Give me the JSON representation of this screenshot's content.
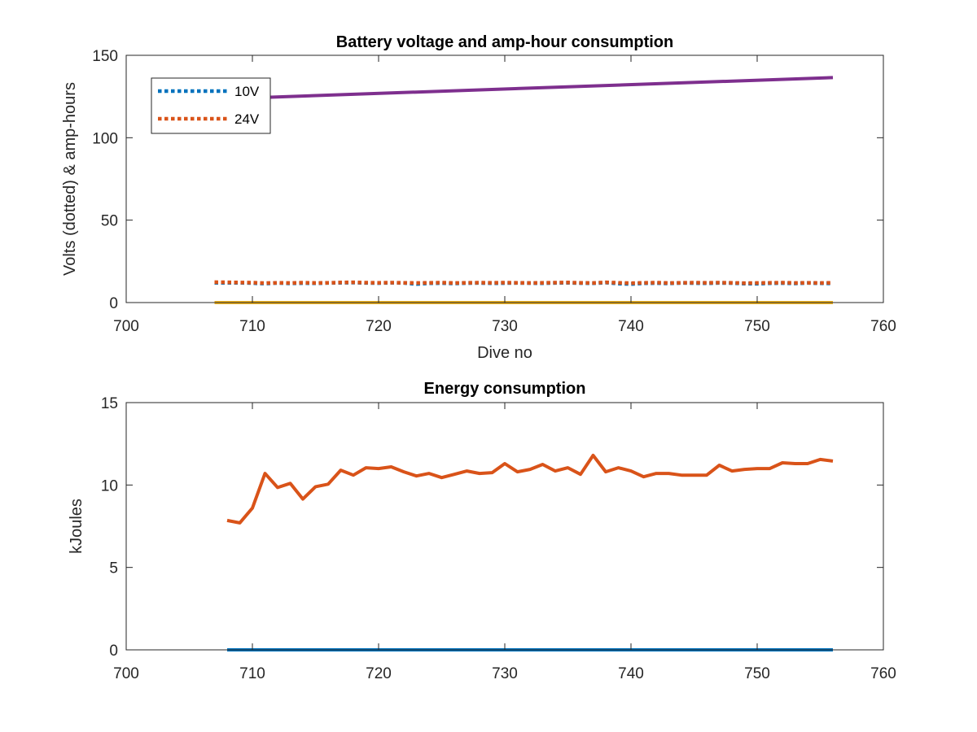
{
  "chart_data": [
    {
      "type": "line",
      "title": "Battery voltage and amp-hour consumption",
      "xlabel": "Dive no",
      "ylabel": "Volts (dotted) & amp-hours",
      "xlim": [
        700,
        760
      ],
      "ylim": [
        0,
        150
      ],
      "xticks": [
        700,
        710,
        720,
        730,
        740,
        750,
        760
      ],
      "yticks": [
        0,
        50,
        100,
        150
      ],
      "legend_position": "top-left",
      "grid": false,
      "series": [
        {
          "name": "10V",
          "style": "dotted",
          "color": "#0072BD",
          "x": [
            707,
            708,
            709,
            710,
            711,
            712,
            713,
            714,
            715,
            716,
            717,
            718,
            719,
            720,
            721,
            722,
            723,
            724,
            725,
            726,
            727,
            728,
            729,
            730,
            731,
            732,
            733,
            734,
            735,
            736,
            737,
            738,
            739,
            740,
            741,
            742,
            743,
            744,
            745,
            746,
            747,
            748,
            749,
            750,
            751,
            752,
            753,
            754,
            755,
            756
          ],
          "y": [
            12,
            12,
            12,
            11.8,
            11.5,
            11.9,
            11.6,
            11.8,
            11.7,
            11.9,
            12,
            12.1,
            11.9,
            11.8,
            12,
            11.9,
            11.2,
            11.7,
            11.8,
            11.6,
            11.8,
            11.9,
            11.7,
            11.8,
            11.9,
            11.8,
            11.7,
            11.9,
            12,
            11.8,
            11.7,
            12.1,
            11.5,
            11.2,
            11.7,
            11.8,
            11.6,
            11.9,
            11.8,
            11.7,
            11.9,
            11.8,
            11.5,
            11.4,
            11.7,
            11.8,
            11.6,
            11.9,
            11.7,
            11.6
          ]
        },
        {
          "name": "24V",
          "style": "dotted",
          "color": "#D95319",
          "x": [
            707,
            708,
            709,
            710,
            711,
            712,
            713,
            714,
            715,
            716,
            717,
            718,
            719,
            720,
            721,
            722,
            723,
            724,
            725,
            726,
            727,
            728,
            729,
            730,
            731,
            732,
            733,
            734,
            735,
            736,
            737,
            738,
            739,
            740,
            741,
            742,
            743,
            744,
            745,
            746,
            747,
            748,
            749,
            750,
            751,
            752,
            753,
            754,
            755,
            756
          ],
          "y": [
            12.4,
            12.3,
            12.2,
            12.1,
            11.8,
            12,
            11.9,
            12.1,
            11.9,
            12,
            12.2,
            12.3,
            12.1,
            12,
            12.1,
            12,
            11.9,
            12,
            12.1,
            11.9,
            12,
            12.1,
            12,
            12.1,
            12,
            11.9,
            12,
            12.1,
            12.2,
            12,
            11.9,
            12.3,
            12,
            11.8,
            12,
            12.1,
            11.9,
            12,
            12.1,
            12,
            12.1,
            12,
            11.8,
            11.9,
            12,
            12.1,
            11.9,
            12,
            11.9,
            12
          ]
        },
        {
          "color": "#EDB120",
          "style": "solid",
          "x": [
            707,
            756
          ],
          "y": [
            0,
            0
          ]
        },
        {
          "color": "#7E2F8E",
          "style": "solid",
          "x": [
            711,
            756
          ],
          "y": [
            124.5,
            136.5
          ]
        }
      ],
      "legend": {
        "items": [
          "10V",
          "24V"
        ]
      }
    },
    {
      "type": "line",
      "title": "Energy consumption",
      "xlabel": "",
      "ylabel": "kJoules",
      "xlim": [
        700,
        760
      ],
      "ylim": [
        0,
        15
      ],
      "xticks": [
        700,
        710,
        720,
        730,
        740,
        750,
        760
      ],
      "yticks": [
        0,
        5,
        10,
        15
      ],
      "grid": false,
      "series": [
        {
          "color": "#0072BD",
          "style": "solid",
          "x": [
            708,
            756
          ],
          "y": [
            0,
            0
          ]
        },
        {
          "color": "#D95319",
          "style": "solid",
          "x": [
            708,
            709,
            710,
            711,
            712,
            713,
            714,
            715,
            716,
            717,
            718,
            719,
            720,
            721,
            722,
            723,
            724,
            725,
            726,
            727,
            728,
            729,
            730,
            731,
            732,
            733,
            734,
            735,
            736,
            737,
            738,
            739,
            740,
            741,
            742,
            743,
            744,
            745,
            746,
            747,
            748,
            749,
            750,
            751,
            752,
            753,
            754,
            755,
            756
          ],
          "y": [
            7.85,
            7.7,
            8.6,
            10.7,
            9.85,
            10.1,
            9.15,
            9.9,
            10.05,
            10.9,
            10.6,
            11.05,
            11,
            11.1,
            10.8,
            10.55,
            10.7,
            10.45,
            10.65,
            10.85,
            10.7,
            10.75,
            11.3,
            10.8,
            10.95,
            11.25,
            10.85,
            11.05,
            10.65,
            11.8,
            10.8,
            11.05,
            10.85,
            10.5,
            10.7,
            10.7,
            10.6,
            10.6,
            10.6,
            11.2,
            10.85,
            10.95,
            11,
            11,
            11.35,
            11.3,
            11.3,
            11.55,
            11.45
          ]
        }
      ]
    }
  ]
}
